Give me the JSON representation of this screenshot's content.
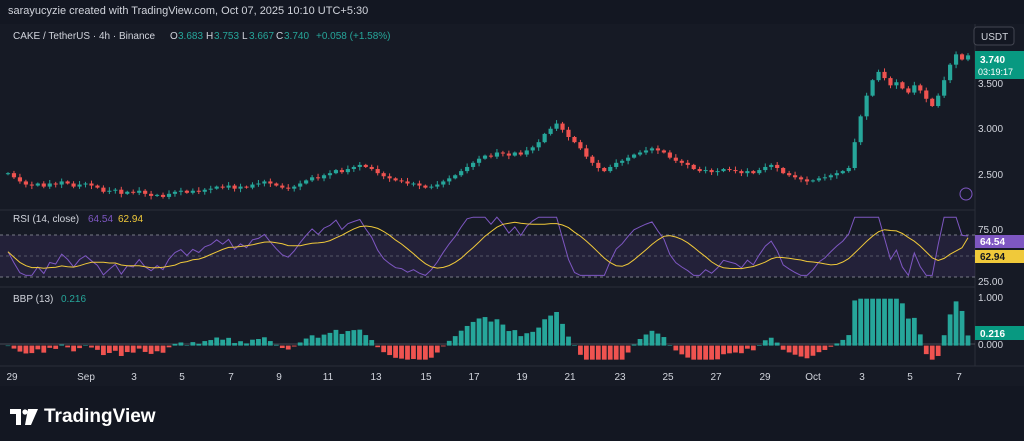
{
  "credit": "sarayucyzie created with TradingView.com, Oct 07, 2025 10:10 UTC+5:30",
  "header": {
    "symbol": "CAKE / TetherUS · 4h · Binance",
    "open_label": "O",
    "open": "3.683",
    "high_label": "H",
    "high": "3.753",
    "low_label": "L",
    "low": "3.667",
    "close_label": "C",
    "close": "3.740",
    "change": "+0.058 (+1.58%)"
  },
  "currency_button": "USDT",
  "price_badge": {
    "price": "3.740",
    "countdown": "03:19:17"
  },
  "price_axis": [
    "3.500",
    "3.000",
    "2.500"
  ],
  "rsi": {
    "title": "RSI (14, close)",
    "value": "64.54",
    "ma": "62.94",
    "badge_value": "64.54",
    "badge_ma": "62.94",
    "axis": [
      "75.00",
      "25.00"
    ]
  },
  "bbp": {
    "title": "BBP (13)",
    "value": "0.216",
    "badge": "0.216",
    "axis": [
      "1.000",
      "0.000"
    ]
  },
  "x_axis": [
    "29",
    "Sep",
    "3",
    "5",
    "7",
    "9",
    "11",
    "13",
    "15",
    "17",
    "19",
    "21",
    "23",
    "25",
    "27",
    "29",
    "Oct",
    "3",
    "5",
    "7"
  ],
  "brand": "TradingView",
  "colors": {
    "up": "#26a69a",
    "down": "#ef5350",
    "rsi_line": "#7e57c2",
    "rsi_ma": "#f0c93a",
    "badge": "#089981"
  },
  "chart_data": {
    "type": "candlestick",
    "symbol": "CAKE / TetherUS",
    "interval": "4h",
    "price_ylim": [
      2.35,
      3.85
    ],
    "closes": [
      2.6,
      2.56,
      2.52,
      2.49,
      2.48,
      2.5,
      2.47,
      2.5,
      2.49,
      2.52,
      2.5,
      2.47,
      2.49,
      2.5,
      2.48,
      2.46,
      2.42,
      2.43,
      2.44,
      2.4,
      2.42,
      2.41,
      2.43,
      2.4,
      2.38,
      2.39,
      2.37,
      2.4,
      2.42,
      2.43,
      2.41,
      2.43,
      2.42,
      2.44,
      2.45,
      2.47,
      2.46,
      2.48,
      2.45,
      2.47,
      2.46,
      2.49,
      2.5,
      2.52,
      2.5,
      2.48,
      2.46,
      2.45,
      2.47,
      2.5,
      2.53,
      2.56,
      2.55,
      2.58,
      2.6,
      2.63,
      2.61,
      2.64,
      2.66,
      2.68,
      2.66,
      2.64,
      2.6,
      2.57,
      2.55,
      2.53,
      2.52,
      2.5,
      2.5,
      2.48,
      2.46,
      2.47,
      2.49,
      2.52,
      2.55,
      2.58,
      2.62,
      2.66,
      2.7,
      2.74,
      2.77,
      2.76,
      2.8,
      2.79,
      2.77,
      2.8,
      2.78,
      2.82,
      2.85,
      2.9,
      2.98,
      3.03,
      3.08,
      3.02,
      2.95,
      2.9,
      2.84,
      2.76,
      2.7,
      2.65,
      2.62,
      2.66,
      2.7,
      2.72,
      2.75,
      2.78,
      2.8,
      2.82,
      2.84,
      2.82,
      2.8,
      2.75,
      2.72,
      2.7,
      2.68,
      2.64,
      2.62,
      2.63,
      2.61,
      2.62,
      2.64,
      2.63,
      2.62,
      2.6,
      2.62,
      2.6,
      2.63,
      2.66,
      2.68,
      2.65,
      2.6,
      2.58,
      2.56,
      2.54,
      2.52,
      2.53,
      2.55,
      2.56,
      2.58,
      2.6,
      2.62,
      2.65,
      2.9,
      3.15,
      3.35,
      3.5,
      3.58,
      3.52,
      3.45,
      3.48,
      3.42,
      3.38,
      3.45,
      3.4,
      3.32,
      3.25,
      3.35,
      3.5,
      3.65,
      3.75,
      3.7,
      3.74
    ],
    "rsi_ylim": [
      20,
      85
    ],
    "rsi_lines": [
      75,
      50,
      25
    ],
    "rsi_current": 64.54,
    "rsi_ma_current": 62.94,
    "bbp_ylim": [
      -0.35,
      1.1
    ],
    "bbp_current": 0.216,
    "x_ticks": [
      "29",
      "Sep",
      "3",
      "5",
      "7",
      "9",
      "11",
      "13",
      "15",
      "17",
      "19",
      "21",
      "23",
      "25",
      "27",
      "29",
      "Oct",
      "3",
      "5",
      "7"
    ]
  }
}
